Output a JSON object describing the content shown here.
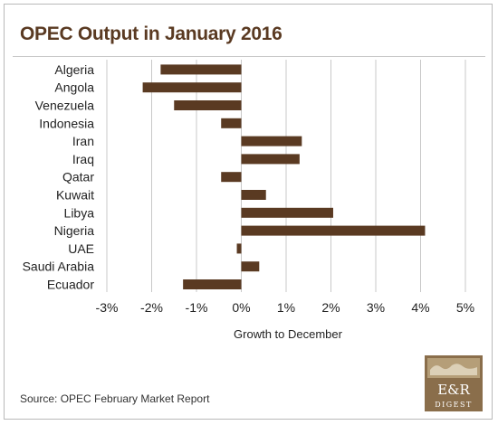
{
  "title": "OPEC Output in January 2016",
  "source": "Source: OPEC February Market Report",
  "logo": {
    "name": "E&R DIGEST",
    "colors": {
      "primary": "#8a6e4b",
      "light": "#d8c9ad"
    }
  },
  "colors": {
    "bar": "#5a3a22",
    "title": "#5a3a22",
    "grid": "#c8c8c8",
    "text": "#222222"
  },
  "chart_data": {
    "type": "bar",
    "orientation": "horizontal",
    "title": "OPEC Output in January 2016",
    "xlabel": "Growth to December",
    "ylabel": "",
    "categories": [
      "Algeria",
      "Angola",
      "Venezuela",
      "Indonesia",
      "Iran",
      "Iraq",
      "Qatar",
      "Kuwait",
      "Libya",
      "Nigeria",
      "UAE",
      "Saudi Arabia",
      "Ecuador"
    ],
    "values": [
      -1.8,
      -2.2,
      -1.5,
      -0.45,
      1.35,
      1.3,
      -0.45,
      0.55,
      2.05,
      4.1,
      -0.1,
      0.4,
      -1.3
    ],
    "unit": "%",
    "xlim": [
      -3,
      5
    ],
    "xticks": [
      -3,
      -2,
      -1,
      0,
      1,
      2,
      3,
      4,
      5
    ],
    "xtick_labels": [
      "-3%",
      "-2%",
      "-1%",
      "0%",
      "1%",
      "2%",
      "3%",
      "4%",
      "5%"
    ],
    "grid": "vertical",
    "legend": "none"
  }
}
